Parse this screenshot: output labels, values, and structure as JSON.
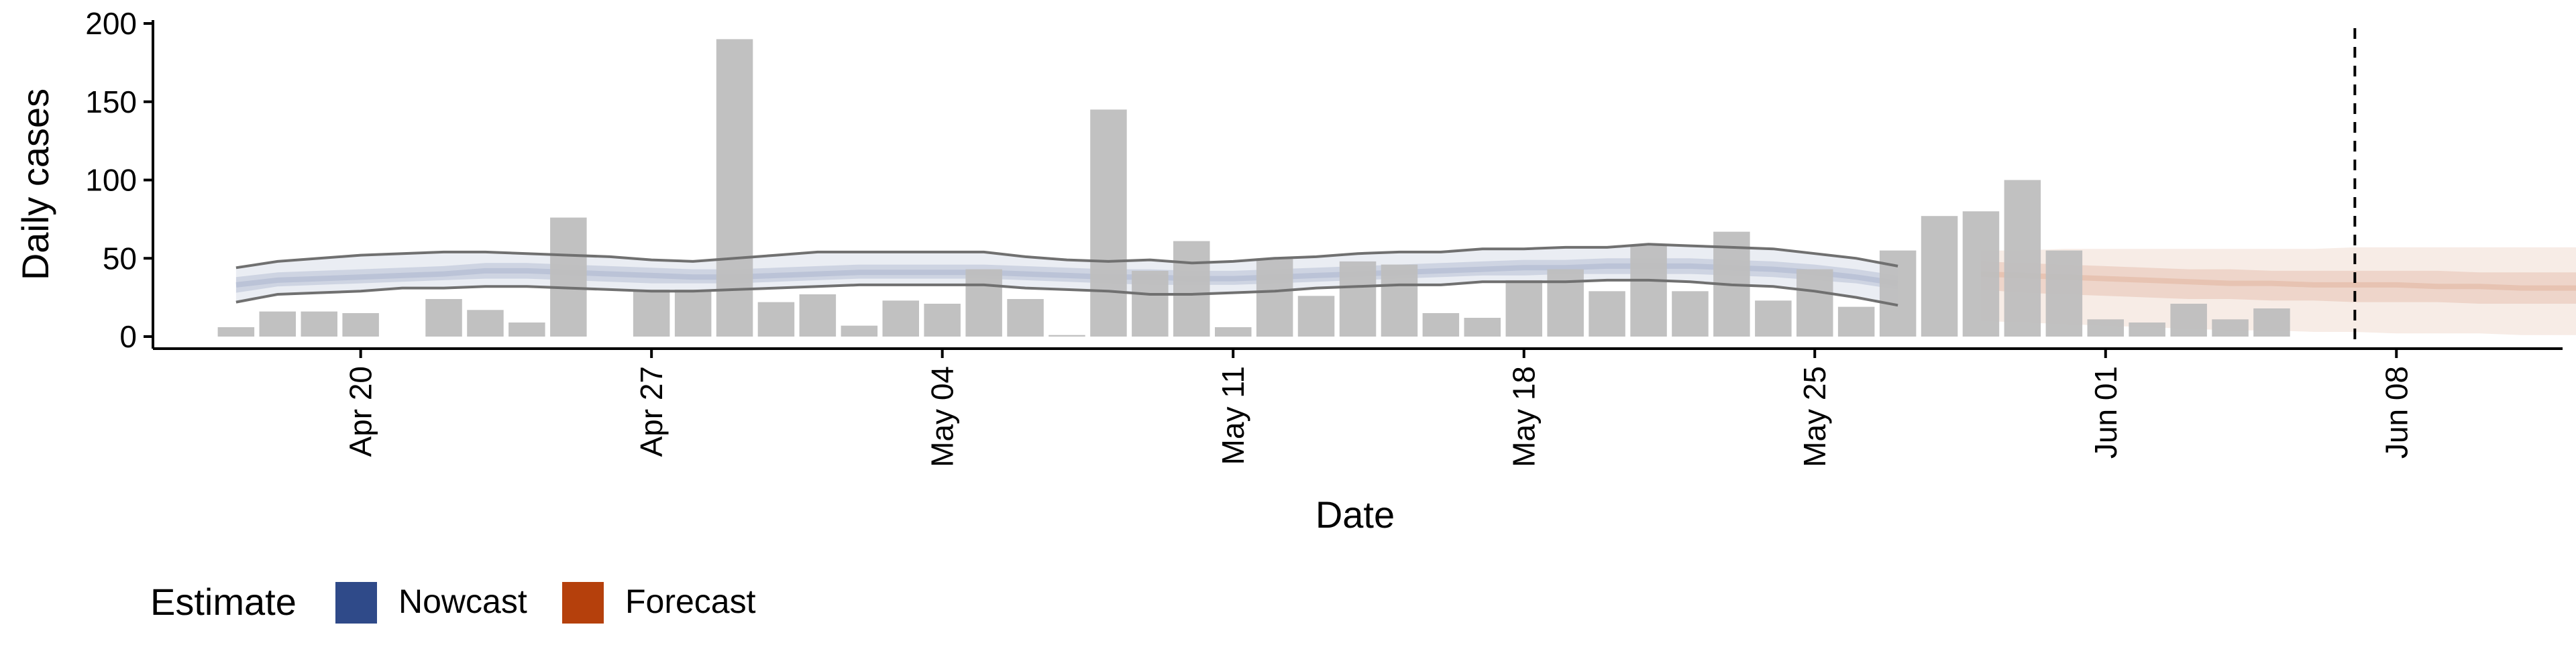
{
  "chart_data": {
    "type": "bar",
    "xlabel": "Date",
    "ylabel": "Daily cases",
    "ylim": [
      0,
      200
    ],
    "yticks": [
      0,
      50,
      100,
      150,
      200
    ],
    "xlim": [
      "2020-04-15",
      "2020-06-12"
    ],
    "xtick_dates": [
      "2020-04-20",
      "2020-04-27",
      "2020-05-04",
      "2020-05-11",
      "2020-05-18",
      "2020-05-25",
      "2020-06-01",
      "2020-06-08"
    ],
    "xtick_labels": [
      "Apr 20",
      "Apr 27",
      "May 04",
      "May 11",
      "May 18",
      "May 25",
      "Jun 01",
      "Jun 08"
    ],
    "grid": false,
    "legend": {
      "title": "Estimate",
      "position": "bottom-left",
      "items": [
        {
          "label": "Nowcast",
          "color": "#2F4A89"
        },
        {
          "label": "Forecast",
          "color": "#B5400C"
        }
      ]
    },
    "colors": {
      "bars": "#BEBEBE",
      "nowcast": "#2F4A89",
      "forecast": "#B5400C",
      "outer_lines": "#707070",
      "axis": "#000000",
      "vline": "#000000"
    },
    "reported_cases": {
      "start_date": "2020-04-17",
      "values": [
        6,
        16,
        16,
        15,
        0,
        24,
        17,
        9,
        76,
        0,
        30,
        30,
        190,
        22,
        27,
        7,
        23,
        21,
        43,
        24,
        1,
        145,
        42,
        61,
        6,
        50,
        26,
        48,
        46,
        15,
        12,
        36,
        43,
        29,
        58,
        29,
        67,
        23,
        43,
        19,
        55,
        77,
        80,
        100,
        55,
        11,
        9,
        21,
        11,
        18
      ]
    },
    "nowcast": {
      "start_date": "2020-04-17",
      "median": [
        33,
        36,
        37,
        38,
        39,
        40,
        42,
        42,
        41,
        40,
        39,
        38,
        38,
        39,
        40,
        41,
        41,
        41,
        41,
        40,
        39,
        38,
        38,
        37,
        37,
        38,
        39,
        40,
        41,
        42,
        43,
        44,
        44,
        45,
        45,
        45,
        44,
        43,
        41,
        38,
        34
      ],
      "inner_low": [
        28,
        32,
        33,
        34,
        35,
        36,
        37,
        37,
        36,
        35,
        34,
        34,
        34,
        35,
        36,
        37,
        37,
        37,
        37,
        36,
        35,
        34,
        33,
        33,
        33,
        34,
        35,
        36,
        37,
        38,
        39,
        39,
        40,
        40,
        40,
        40,
        39,
        38,
        36,
        34,
        30
      ],
      "inner_high": [
        38,
        41,
        42,
        43,
        44,
        45,
        47,
        47,
        46,
        45,
        44,
        43,
        43,
        44,
        45,
        46,
        46,
        46,
        46,
        45,
        44,
        43,
        43,
        42,
        42,
        43,
        44,
        45,
        46,
        47,
        48,
        49,
        49,
        50,
        50,
        50,
        49,
        48,
        46,
        43,
        39
      ],
      "outer_low": [
        22,
        27,
        28,
        29,
        31,
        31,
        32,
        32,
        31,
        30,
        29,
        29,
        30,
        31,
        32,
        33,
        33,
        33,
        33,
        31,
        30,
        29,
        27,
        27,
        28,
        29,
        31,
        32,
        33,
        33,
        35,
        35,
        35,
        36,
        36,
        35,
        33,
        32,
        29,
        25,
        20
      ],
      "outer_high": [
        44,
        48,
        50,
        52,
        53,
        54,
        54,
        53,
        52,
        51,
        49,
        48,
        50,
        52,
        54,
        54,
        54,
        54,
        54,
        51,
        49,
        48,
        49,
        47,
        48,
        50,
        51,
        53,
        54,
        54,
        56,
        56,
        57,
        57,
        59,
        58,
        57,
        56,
        53,
        50,
        45
      ]
    },
    "forecast": {
      "start_date": "2020-05-29",
      "median": [
        40,
        39,
        38,
        37,
        36,
        35,
        34,
        34,
        33,
        33,
        33,
        32,
        32,
        31,
        31,
        31,
        30,
        30,
        30,
        30,
        29,
        29,
        29,
        29,
        28
      ],
      "inner_low": [
        30,
        28,
        27,
        26,
        25,
        24,
        24,
        23,
        23,
        22,
        22,
        22,
        21,
        21,
        21,
        21,
        20,
        20,
        20,
        20,
        20,
        19,
        19,
        19,
        19
      ],
      "inner_high": [
        48,
        47,
        46,
        45,
        44,
        43,
        43,
        42,
        42,
        42,
        42,
        42,
        41,
        41,
        41,
        41,
        41,
        40,
        40,
        40,
        40,
        40,
        40,
        40,
        40
      ],
      "outer_low": [
        10,
        9,
        8,
        7,
        6,
        5,
        4,
        4,
        3,
        3,
        2,
        2,
        2,
        1,
        1,
        1,
        1,
        0,
        0,
        0,
        0,
        0,
        0,
        0,
        0
      ],
      "outer_high": [
        55,
        55,
        56,
        56,
        56,
        56,
        56,
        56,
        56,
        57,
        57,
        57,
        57,
        57,
        57,
        57,
        57,
        57,
        57,
        57,
        57,
        57,
        57,
        57,
        57
      ]
    },
    "vline_date": "2020-06-07"
  }
}
